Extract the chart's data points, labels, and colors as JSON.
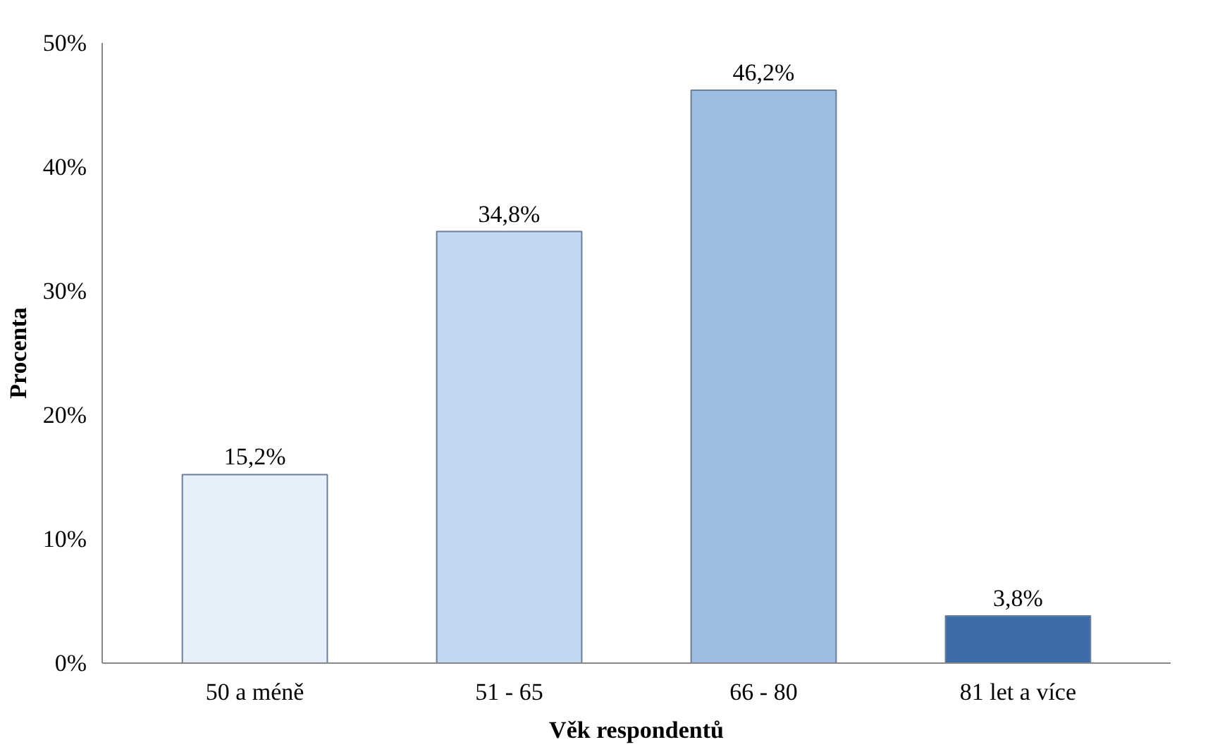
{
  "chart_data": {
    "type": "bar",
    "xlabel": "Věk respondentů",
    "ylabel": "Procenta",
    "categories": [
      "50 a méně",
      "51 - 65",
      "66 - 80",
      "81 let a více"
    ],
    "values": [
      15.2,
      34.8,
      46.2,
      3.8
    ],
    "colors": [
      "#e6f0fb",
      "#c2d8f0",
      "#9dbde3",
      "#3d6ca8"
    ],
    "value_labels": [
      "15,2%",
      "34,8%",
      "46,2%",
      "3,8%"
    ],
    "ylim": [
      0,
      50
    ],
    "yticks": [
      {
        "value": 0,
        "label": "0%"
      },
      {
        "value": 10,
        "label": "10%"
      },
      {
        "value": 20,
        "label": "20%"
      },
      {
        "value": 30,
        "label": "30%"
      },
      {
        "value": 40,
        "label": "40%"
      },
      {
        "value": 50,
        "label": "50%"
      }
    ],
    "grid": false
  }
}
